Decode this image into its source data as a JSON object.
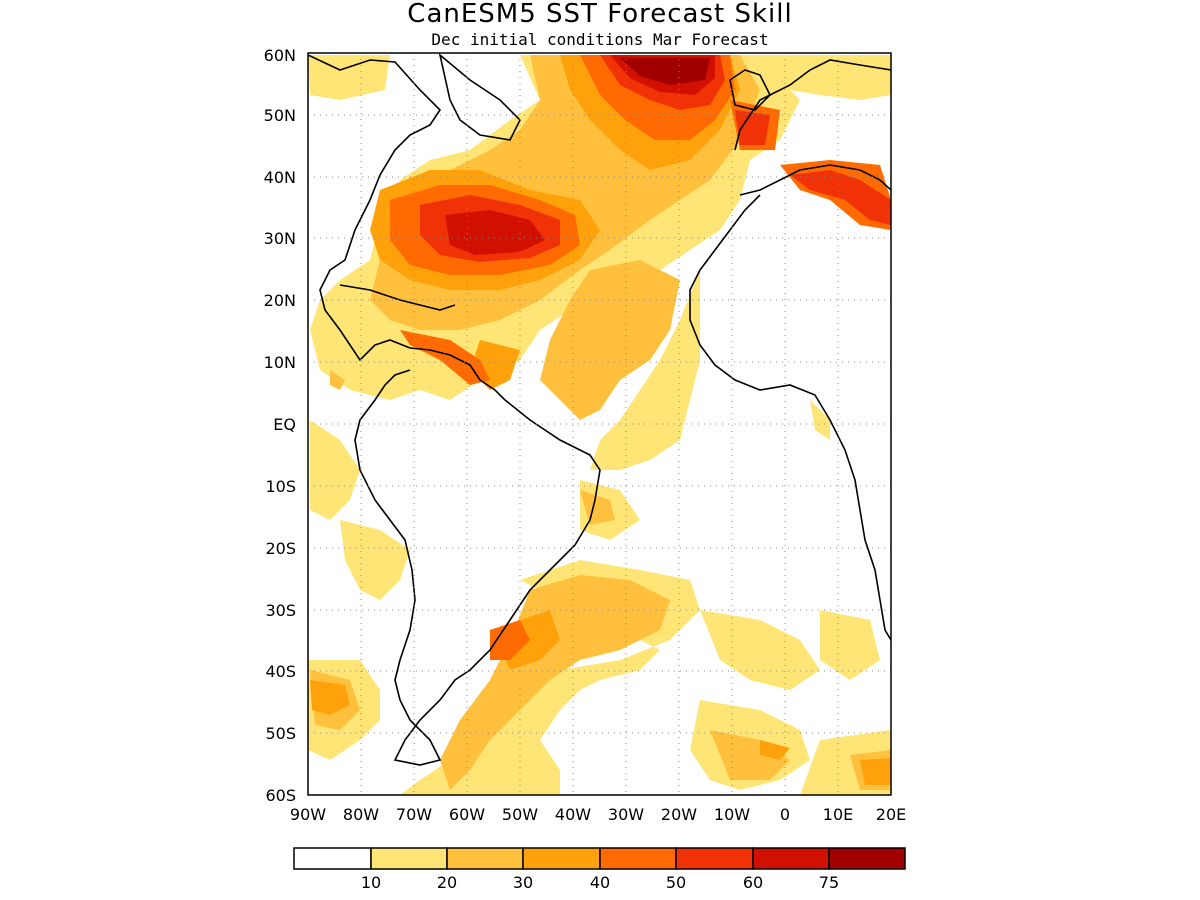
{
  "title": "CanESM5 SST Forecast Skill",
  "subtitle": "Dec initial conditions  Mar Forecast",
  "axes": {
    "lat_ticks": [
      "60N",
      "50N",
      "40N",
      "30N",
      "20N",
      "10N",
      "EQ",
      "10S",
      "20S",
      "30S",
      "40S",
      "50S",
      "60S"
    ],
    "lon_ticks": [
      "90W",
      "80W",
      "70W",
      "60W",
      "50W",
      "40W",
      "30W",
      "20W",
      "10W",
      "0",
      "10E",
      "20E"
    ],
    "lat_range": [
      -60,
      60
    ],
    "lon_range": [
      -90,
      20
    ],
    "grid": "dotted"
  },
  "colorbar": {
    "labels": [
      "10",
      "20",
      "30",
      "40",
      "50",
      "60",
      "75"
    ],
    "colors": [
      "#ffffff",
      "#ffe575",
      "#ffc13d",
      "#ffa10a",
      "#ff6b00",
      "#f13207",
      "#d21000",
      "#a00000"
    ]
  },
  "colors": {
    "land_outline": "#000000",
    "ocean_background": "#ffffff"
  }
}
